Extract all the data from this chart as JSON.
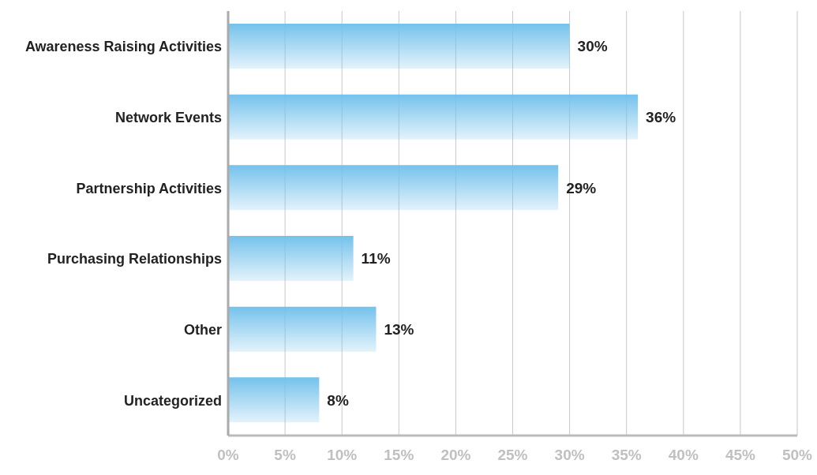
{
  "chart_data": {
    "type": "bar",
    "orientation": "horizontal",
    "categories": [
      "Awareness Raising Activities",
      "Network Events",
      "Partnership Activities",
      "Purchasing Relationships",
      "Other",
      "Uncategorized"
    ],
    "values": [
      30,
      36,
      29,
      11,
      13,
      8
    ],
    "value_labels": [
      "30%",
      "36%",
      "29%",
      "11%",
      "13%",
      "8%"
    ],
    "color": "#74c2ec",
    "xlim": [
      0,
      50
    ],
    "xticks": [
      {
        "value": 0,
        "label": "0%"
      },
      {
        "value": 5,
        "label": "5%"
      },
      {
        "value": 10,
        "label": "10%"
      },
      {
        "value": 15,
        "label": "15%"
      },
      {
        "value": 20,
        "label": "20%"
      },
      {
        "value": 25,
        "label": "25%"
      },
      {
        "value": 30,
        "label": "30%"
      },
      {
        "value": 35,
        "label": "35%"
      },
      {
        "value": 40,
        "label": "40%"
      },
      {
        "value": 45,
        "label": "45%"
      },
      {
        "value": 50,
        "label": "50%"
      }
    ],
    "grid": "x"
  }
}
